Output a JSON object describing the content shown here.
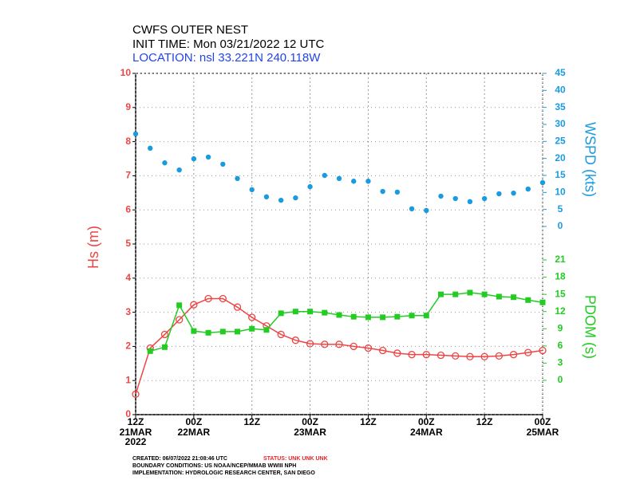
{
  "chart_data": {
    "type": "line",
    "title": "CWFS OUTER NEST",
    "subtitle": "INIT TIME: Mon 03/21/2022 12 UTC",
    "location": "LOCATION:  nsl  33.221N  240.118W",
    "ylabel": "Hs  (m)",
    "y2label": "WSPD  (kts)",
    "y3label": "PDOM  (s)",
    "x": [
      0,
      3,
      6,
      9,
      12,
      15,
      18,
      21,
      24,
      27,
      30,
      33,
      36,
      39,
      42,
      45,
      48,
      51,
      54,
      57,
      60,
      63,
      66,
      69,
      72,
      75,
      78,
      81,
      84
    ],
    "xlim": [
      0,
      84
    ],
    "xticks": [
      {
        "value": 0,
        "label": "12Z"
      },
      {
        "value": 12,
        "label": "00Z"
      },
      {
        "value": 24,
        "label": "12Z"
      },
      {
        "value": 36,
        "label": "00Z"
      },
      {
        "value": 48,
        "label": "12Z"
      },
      {
        "value": 60,
        "label": "00Z"
      },
      {
        "value": 72,
        "label": "12Z"
      },
      {
        "value": 84,
        "label": "00Z"
      }
    ],
    "xdate_labels": [
      {
        "value": 0,
        "label": "21MAR"
      },
      {
        "value": 12,
        "label": "22MAR"
      },
      {
        "value": 36,
        "label": "23MAR"
      },
      {
        "value": 60,
        "label": "24MAR"
      },
      {
        "value": 84,
        "label": "25MAR"
      }
    ],
    "year": "2022",
    "ylim": [
      0,
      10
    ],
    "yticks": [
      0,
      1,
      2,
      3,
      4,
      5,
      6,
      7,
      8,
      9,
      10
    ],
    "y2lim": [
      0,
      45
    ],
    "y2ticks": [
      0,
      5,
      10,
      15,
      20,
      25,
      30,
      35,
      40,
      45
    ],
    "y3lim": [
      0,
      21
    ],
    "y3ticks": [
      0,
      3,
      6,
      9,
      12,
      15,
      18,
      21
    ],
    "grid": true,
    "series": [
      {
        "name": "Hs",
        "color": "#ee4444",
        "axis": "y",
        "marker": "circle",
        "values": [
          0.6,
          1.95,
          2.35,
          2.78,
          3.22,
          3.4,
          3.4,
          3.15,
          2.85,
          2.6,
          2.35,
          2.18,
          2.08,
          2.06,
          2.06,
          2.0,
          1.95,
          1.88,
          1.8,
          1.76,
          1.76,
          1.74,
          1.72,
          1.7,
          1.7,
          1.72,
          1.76,
          1.82,
          1.88
        ]
      },
      {
        "name": "WSPD",
        "color": "#1a9be0",
        "axis": "y2",
        "marker": "dot",
        "values": [
          27.2,
          23,
          18.7,
          16.6,
          19.9,
          20.4,
          18.3,
          14.1,
          10.8,
          8.7,
          7.7,
          8.4,
          11.7,
          15,
          14.1,
          13.3,
          13.3,
          10.3,
          10.1,
          5.2,
          4.7,
          8.9,
          8.2,
          7.3,
          8.2,
          9.6,
          9.8,
          11,
          12.9
        ]
      },
      {
        "name": "PDOM",
        "color": "#22cc22",
        "axis": "y3",
        "marker": "square",
        "values": [
          null,
          5.1,
          5.8,
          13.1,
          8.6,
          8.3,
          8.5,
          8.5,
          9.0,
          8.8,
          11.7,
          12.0,
          12.0,
          11.8,
          11.4,
          11.1,
          11.0,
          11.0,
          11.1,
          11.3,
          11.3,
          15.0,
          15.0,
          15.3,
          15.0,
          14.6,
          14.5,
          14.0,
          13.6
        ]
      }
    ],
    "footer": {
      "created": "CREATED: 06/07/2022 21:08:46 UTC",
      "status": "STATUS: UNK UNK UNK",
      "boundary": "BOUNDARY CONDITIONS: US NOAA/NCEP/MMAB WWIII NPH",
      "implementation": "IMPLEMENTATION: HYDROLOGIC RESEARCH CENTER, SAN DIEGO"
    }
  }
}
